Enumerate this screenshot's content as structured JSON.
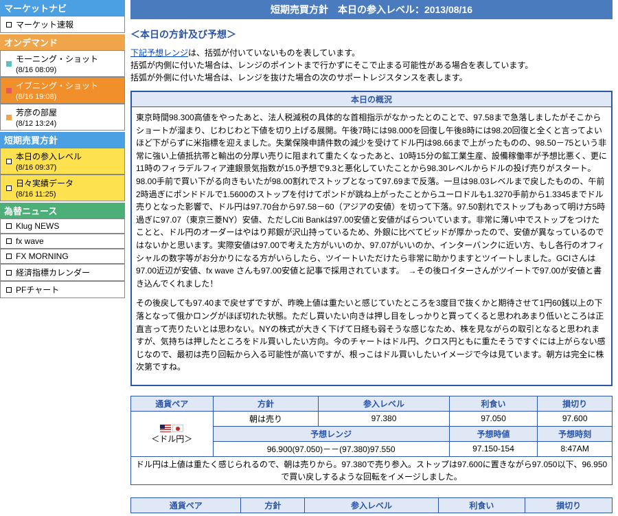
{
  "sidebar": {
    "sections": [
      {
        "title": "マーケットナビ",
        "headerClass": "",
        "items": [
          {
            "label": "マーケット速報",
            "sub": "",
            "dot": "white",
            "rowClass": ""
          }
        ]
      },
      {
        "title": "オンデマンド",
        "headerClass": "orange",
        "items": [
          {
            "label": "モーニング・ショット",
            "sub": "(8/16 08:09)",
            "dot": "teal",
            "rowClass": ""
          },
          {
            "label": "イブニング・ショット",
            "sub": "(8/16 19:08)",
            "dot": "red",
            "rowClass": "orange"
          },
          {
            "label": "芳彦の部屋",
            "sub": "(8/12 13:24)",
            "dot": "orange",
            "rowClass": ""
          }
        ]
      },
      {
        "title": "短期売買方針",
        "headerClass": "",
        "items": [
          {
            "label": "本日の参入レベル",
            "sub": "(8/16 09:37)",
            "dot": "white",
            "rowClass": "yellow"
          },
          {
            "label": "日々実績データ",
            "sub": "(8/16 11:25)",
            "dot": "white",
            "rowClass": "yellow"
          }
        ]
      },
      {
        "title": "為替ニュース",
        "headerClass": "green",
        "items": [
          {
            "label": "Klug NEWS",
            "sub": "",
            "dot": "white",
            "rowClass": ""
          },
          {
            "label": "fx wave",
            "sub": "",
            "dot": "white",
            "rowClass": ""
          },
          {
            "label": "FX MORNING",
            "sub": "",
            "dot": "white",
            "rowClass": ""
          },
          {
            "label": "経済指標カレンダー",
            "sub": "",
            "dot": "white",
            "rowClass": ""
          },
          {
            "label": "PFチャート",
            "sub": "",
            "dot": "white",
            "rowClass": ""
          }
        ]
      }
    ]
  },
  "main": {
    "title": "短期売買方針　本日の参入レベル：2013/08/16",
    "section_title": "＜本日の方針及び予想＞",
    "note_link": "下記予想レンジ",
    "note_rest": "は、括弧が付いていないものを表しています。\n括弧が内側に付いた場合は、レンジのポイントまで行かずにそこで止まる可能性がある場合を表しています。\n括弧が外側に付いた場合は、レンジを抜けた場合の次のサポートレジスタンスを表します。",
    "overview": {
      "header": "本日の概況",
      "p1": "東京時間98.300高値をやったあと、法人税減税の具体的な首相指示がなかったとのことで、97.58まで急落しましたがそこからショートが溜まり、じわじわと下値を切り上げる展開。午後7時には98.000を回復し午後8時には98.20回復と全くと言ってよいほど下がらずに米指標を迎えました。失業保険申請件数の減少を受けてドル円は98.66まで上がったものの、98.50－75という非常に強い上値抵抗帯と輸出の分厚い売りに阻まれて重たくなったあと、10時15分の鉱工業生産、設備稼働率が予想比悪く、更に11時のフィラデルフィア連銀景気指数が15.0予想で9.3と悪化していたことから98.30レベルからドルの投げ売りがスタート。98.00手前で買い下がる向きもいたが98.00割れでストップとなって97.69まで反落。一旦は98.03レベルまで戻したものの、午前2時過ぎにポンドドルで1.5600のストップを付けてポンドが跳ね上がったことからユーロドルも1.3270手前から1.3345までドル売りとなった影響で、ドル円は97.70台から97.58－60（アジアの安値）を切って下落。97.50割れでストップもあって明け方5時過ぎに97.07（東京三菱NY）安値、ただしCiti Bankは97.00安値と安値がばらついています。非常に薄い中でストップをつけたことと、ドル円のオーダーはやはり邦銀が沢山持っているため、外銀に比べてビッドが厚かったので、安値が異なっているのではないかと思います。実際安値は97.00で考えた方がいいのか、97.07がいいのか、インターバンクに近い方、もし各行のオフィシャルの数字等がお分かりになる方がいらしたら、ツイートいただけたら非常に助かりますとツイートしました。GCIさんは97.00近辺が安値、fx wave さんも97.00安値と記事で採用されています。　→その後ロイターさんがツイートで97.00が安値と書き込んでくれました！",
      "p2": "その後戻しても97.40まで戻せずですが、昨晩上値は重たいと感じていたところを3度目で抜くかと期待させて1円60銭以上の下落となって俄かロングがほぼ切れた状態。ただし買いたい向きは押し目をしっかりと買ってくると思われあまり低いところは正直言って売りたいとは思わない。NYの株式が大きく下げて日経も弱そうな感じなため、株を見ながらの取引となると思われますが、気持ちは押したところをドル買いしたい方向。今のチャートはドル円、クロス円ともに重たそうですぐには上がらない感じなので、最初は売り回転から入る可能性が高いですが、根っこはドル買いしたいイメージで今は見ています。朝方は完全に株次第ですね。"
    },
    "table1": {
      "cols": [
        "通貨ペア",
        "方針",
        "参入レベル",
        "利食い",
        "損切り"
      ],
      "pair_label": "＜ドル円＞",
      "row1": [
        "朝は売り",
        "97.380",
        "97.050",
        "97.600"
      ],
      "sub_cols": [
        "予想レンジ",
        "予想時値",
        "予想時刻"
      ],
      "row2": [
        "96.900(97.050)－－(97.380)97.550",
        "97.150-154",
        "8:47AM"
      ],
      "comment": "ドル円は上値は重たく感じられるので、朝は売りから。97.380で売り参入。ストップは97.600に置きながら97.050以下、96.950で買い戻しするような回転をイメージしました。"
    },
    "table2": {
      "cols": [
        "通貨ペア",
        "方針",
        "参入レベル",
        "利食い",
        "損切り"
      ]
    }
  }
}
